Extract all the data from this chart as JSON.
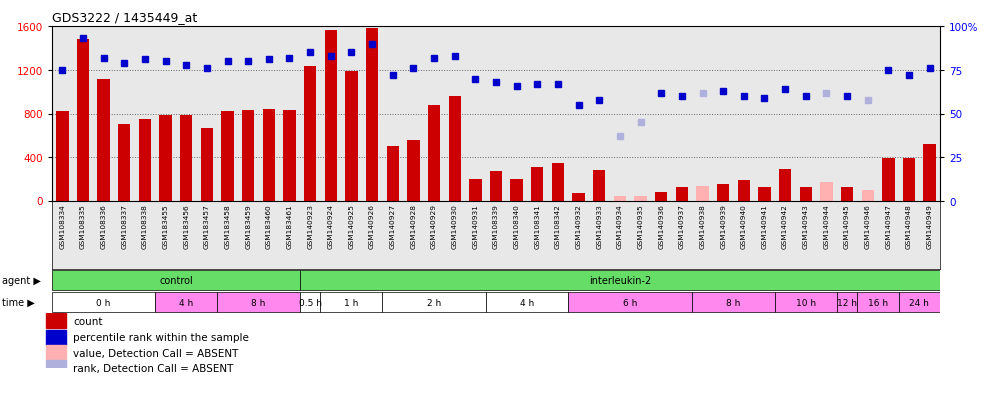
{
  "title": "GDS3222 / 1435449_at",
  "samples": [
    "GSM108334",
    "GSM108335",
    "GSM108336",
    "GSM108337",
    "GSM108338",
    "GSM183455",
    "GSM183456",
    "GSM183457",
    "GSM183458",
    "GSM183459",
    "GSM183460",
    "GSM183461",
    "GSM140923",
    "GSM140924",
    "GSM140925",
    "GSM140926",
    "GSM140927",
    "GSM140928",
    "GSM140929",
    "GSM140930",
    "GSM140931",
    "GSM108339",
    "GSM108340",
    "GSM108341",
    "GSM108342",
    "GSM140932",
    "GSM140933",
    "GSM140934",
    "GSM140935",
    "GSM140936",
    "GSM140937",
    "GSM140938",
    "GSM140939",
    "GSM140940",
    "GSM140941",
    "GSM140942",
    "GSM140943",
    "GSM140944",
    "GSM140945",
    "GSM140946",
    "GSM140947",
    "GSM140948",
    "GSM140949"
  ],
  "bar_values": [
    820,
    1480,
    1120,
    700,
    750,
    790,
    790,
    670,
    820,
    830,
    840,
    830,
    1230,
    1560,
    1190,
    1580,
    500,
    560,
    880,
    960,
    200,
    270,
    200,
    310,
    350,
    70,
    280,
    50,
    50,
    80,
    130,
    140,
    160,
    190,
    130,
    290,
    130,
    170,
    130,
    100,
    390,
    390,
    520
  ],
  "bar_absent": [
    false,
    false,
    false,
    false,
    false,
    false,
    false,
    false,
    false,
    false,
    false,
    false,
    false,
    false,
    false,
    false,
    false,
    false,
    false,
    false,
    false,
    false,
    false,
    false,
    false,
    false,
    false,
    true,
    true,
    false,
    false,
    true,
    false,
    false,
    false,
    false,
    false,
    true,
    false,
    true,
    false,
    false,
    false
  ],
  "rank_values": [
    75,
    93,
    82,
    79,
    81,
    80,
    78,
    76,
    80,
    80,
    81,
    82,
    85,
    83,
    85,
    90,
    72,
    76,
    82,
    83,
    70,
    68,
    66,
    67,
    67,
    55,
    58,
    37,
    45,
    62,
    60,
    62,
    63,
    60,
    59,
    64,
    60,
    62,
    60,
    58,
    75,
    72,
    76
  ],
  "rank_absent": [
    false,
    false,
    false,
    false,
    false,
    false,
    false,
    false,
    false,
    false,
    false,
    false,
    false,
    false,
    false,
    false,
    false,
    false,
    false,
    false,
    false,
    false,
    false,
    false,
    false,
    false,
    false,
    true,
    true,
    false,
    false,
    true,
    false,
    false,
    false,
    false,
    false,
    true,
    false,
    true,
    false,
    false,
    false
  ],
  "agent_groups": [
    {
      "label": "control",
      "start": 0,
      "end": 11
    },
    {
      "label": "interleukin-2",
      "start": 12,
      "end": 42
    }
  ],
  "time_groups": [
    {
      "label": "0 h",
      "start": 0,
      "end": 4,
      "pink": false
    },
    {
      "label": "4 h",
      "start": 5,
      "end": 7,
      "pink": true
    },
    {
      "label": "8 h",
      "start": 8,
      "end": 11,
      "pink": true
    },
    {
      "label": "0.5 h",
      "start": 12,
      "end": 12,
      "pink": false
    },
    {
      "label": "1 h",
      "start": 13,
      "end": 15,
      "pink": false
    },
    {
      "label": "2 h",
      "start": 16,
      "end": 20,
      "pink": false
    },
    {
      "label": "4 h",
      "start": 21,
      "end": 24,
      "pink": false
    },
    {
      "label": "6 h",
      "start": 25,
      "end": 30,
      "pink": true
    },
    {
      "label": "8 h",
      "start": 31,
      "end": 34,
      "pink": true
    },
    {
      "label": "10 h",
      "start": 35,
      "end": 37,
      "pink": true
    },
    {
      "label": "12 h",
      "start": 38,
      "end": 38,
      "pink": true
    },
    {
      "label": "16 h",
      "start": 39,
      "end": 40,
      "pink": true
    },
    {
      "label": "24 h",
      "start": 41,
      "end": 42,
      "pink": true
    }
  ],
  "ylim_left": [
    0,
    1600
  ],
  "ylim_right": [
    0,
    100
  ],
  "yticks_left": [
    0,
    400,
    800,
    1200,
    1600
  ],
  "yticks_right": [
    0,
    25,
    50,
    75,
    100
  ],
  "ytick_labels_right": [
    "0",
    "25",
    "50",
    "75",
    "100%"
  ],
  "bar_color": "#cc0000",
  "bar_absent_color": "#ffb0b0",
  "rank_color": "#0000cc",
  "rank_absent_color": "#b0b0dd",
  "grid_color": "#666666",
  "bg_color": "#e8e8e8",
  "agent_green": "#66dd66",
  "time_pink": "#ff88ee",
  "time_white": "#ffffff"
}
